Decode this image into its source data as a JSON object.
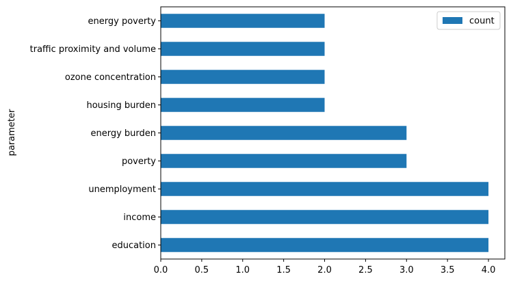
{
  "chart_data": {
    "type": "bar",
    "orientation": "horizontal",
    "categories": [
      "energy poverty",
      "traffic proximity and volume",
      "ozone concentration",
      "housing burden",
      "energy burden",
      "poverty",
      "unemployment",
      "income",
      "education"
    ],
    "series": [
      {
        "name": "count",
        "values": [
          2,
          2,
          2,
          2,
          3,
          3,
          4,
          4,
          4
        ]
      }
    ],
    "title": "",
    "xlabel": "",
    "ylabel": "parameter",
    "xlim": [
      0,
      4.2
    ],
    "xticks": [
      "0.0",
      "0.5",
      "1.0",
      "1.5",
      "2.0",
      "2.5",
      "3.0",
      "3.5",
      "4.0"
    ],
    "grid": false,
    "legend_position": "top-right",
    "bar_color": "#1f77b4"
  }
}
